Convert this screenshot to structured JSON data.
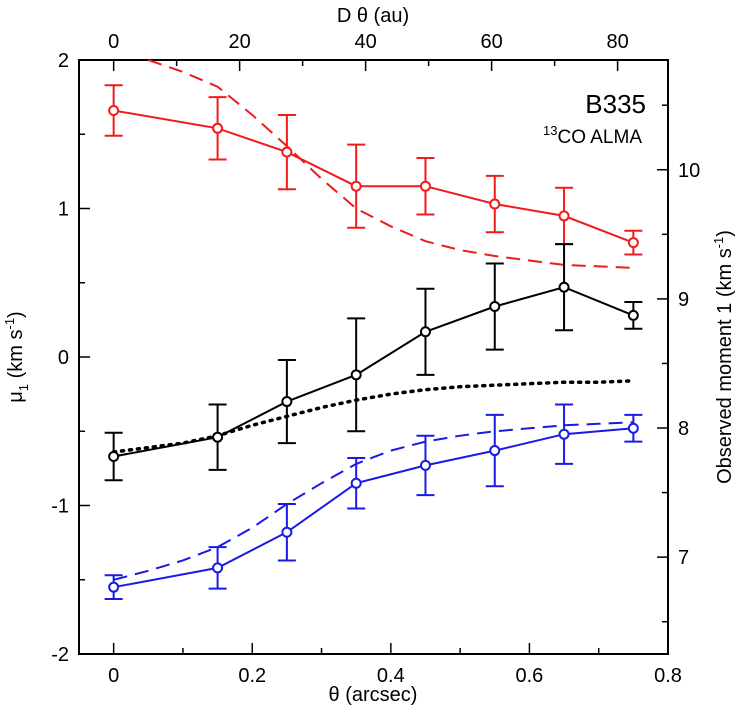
{
  "chart_data": {
    "type": "line",
    "title": "B335",
    "subtitle_sup": "13",
    "subtitle": "CO ALMA",
    "xlabel": "θ (arcsec)",
    "x2label": "D θ (au)",
    "ylabel_main": "μ",
    "ylabel_sub": "1",
    "ylabel_units": " (km s",
    "ylabel_units_sup": "-1",
    "ylabel_close": ")",
    "y2label": "Observed moment 1  (km s",
    "y2label_sup": "-1",
    "y2label_close": ")",
    "xlim": [
      -0.05,
      0.8
    ],
    "ylim": [
      -2,
      2
    ],
    "x2lim": [
      -5.5,
      88
    ],
    "y2lim": [
      6.25,
      10.85
    ],
    "x_ticks": [
      "0",
      "0.2",
      "0.4",
      "0.6",
      "0.8"
    ],
    "x_tick_values": [
      0,
      0.2,
      0.4,
      0.6,
      0.8
    ],
    "y_ticks": [
      "-2",
      "-1",
      "0",
      "1",
      "2"
    ],
    "y_tick_values": [
      -2,
      -1,
      0,
      1,
      2
    ],
    "x2_ticks": [
      "0",
      "20",
      "40",
      "60",
      "80"
    ],
    "x2_tick_values": [
      0,
      20,
      40,
      60,
      80
    ],
    "y2_ticks": [
      "7",
      "8",
      "9",
      "10"
    ],
    "y2_tick_values": [
      7,
      8,
      9,
      10
    ],
    "colors": {
      "red": "#ee1c1c",
      "black": "#000000",
      "blue": "#1a1ae6"
    },
    "series": [
      {
        "name": "red observed",
        "color": "red",
        "x": [
          0,
          0.15,
          0.25,
          0.35,
          0.45,
          0.55,
          0.65,
          0.75
        ],
        "y": [
          1.66,
          1.54,
          1.38,
          1.15,
          1.15,
          1.03,
          0.95,
          0.77
        ],
        "err": [
          0.17,
          0.21,
          0.25,
          0.28,
          0.19,
          0.19,
          0.19,
          0.08
        ]
      },
      {
        "name": "black observed",
        "color": "black",
        "x": [
          0,
          0.15,
          0.25,
          0.35,
          0.45,
          0.55,
          0.65,
          0.75
        ],
        "y": [
          -0.67,
          -0.54,
          -0.3,
          -0.12,
          0.17,
          0.34,
          0.47,
          0.28
        ],
        "err": [
          0.16,
          0.22,
          0.28,
          0.38,
          0.29,
          0.29,
          0.29,
          0.09
        ]
      },
      {
        "name": "blue observed",
        "color": "blue",
        "x": [
          0,
          0.15,
          0.25,
          0.35,
          0.45,
          0.55,
          0.65,
          0.75
        ],
        "y": [
          -1.55,
          -1.42,
          -1.18,
          -0.85,
          -0.73,
          -0.63,
          -0.52,
          -0.48
        ],
        "err": [
          0.08,
          0.14,
          0.19,
          0.17,
          0.2,
          0.24,
          0.2,
          0.09
        ]
      }
    ],
    "models": [
      {
        "name": "red model",
        "color": "red",
        "style": "dashed",
        "x": [
          0.05,
          0.1,
          0.15,
          0.2,
          0.25,
          0.3,
          0.35,
          0.4,
          0.45,
          0.5,
          0.55,
          0.6,
          0.65,
          0.7,
          0.75
        ],
        "y": [
          2.0,
          1.92,
          1.82,
          1.63,
          1.42,
          1.2,
          1.0,
          0.88,
          0.78,
          0.72,
          0.68,
          0.65,
          0.62,
          0.61,
          0.6
        ]
      },
      {
        "name": "blue model",
        "color": "blue",
        "style": "dashed",
        "x": [
          0,
          0.05,
          0.1,
          0.15,
          0.2,
          0.25,
          0.3,
          0.35,
          0.4,
          0.45,
          0.5,
          0.55,
          0.6,
          0.65,
          0.7,
          0.75
        ],
        "y": [
          -1.5,
          -1.44,
          -1.37,
          -1.28,
          -1.15,
          -0.99,
          -0.85,
          -0.72,
          -0.63,
          -0.57,
          -0.53,
          -0.5,
          -0.48,
          -0.46,
          -0.45,
          -0.44
        ]
      },
      {
        "name": "black model",
        "color": "black",
        "style": "dotted",
        "x": [
          0,
          0.05,
          0.1,
          0.15,
          0.2,
          0.25,
          0.3,
          0.35,
          0.4,
          0.45,
          0.5,
          0.55,
          0.6,
          0.65,
          0.7,
          0.75
        ],
        "y": [
          -0.64,
          -0.61,
          -0.58,
          -0.53,
          -0.46,
          -0.4,
          -0.34,
          -0.29,
          -0.25,
          -0.22,
          -0.2,
          -0.19,
          -0.18,
          -0.17,
          -0.17,
          -0.16
        ]
      }
    ]
  }
}
